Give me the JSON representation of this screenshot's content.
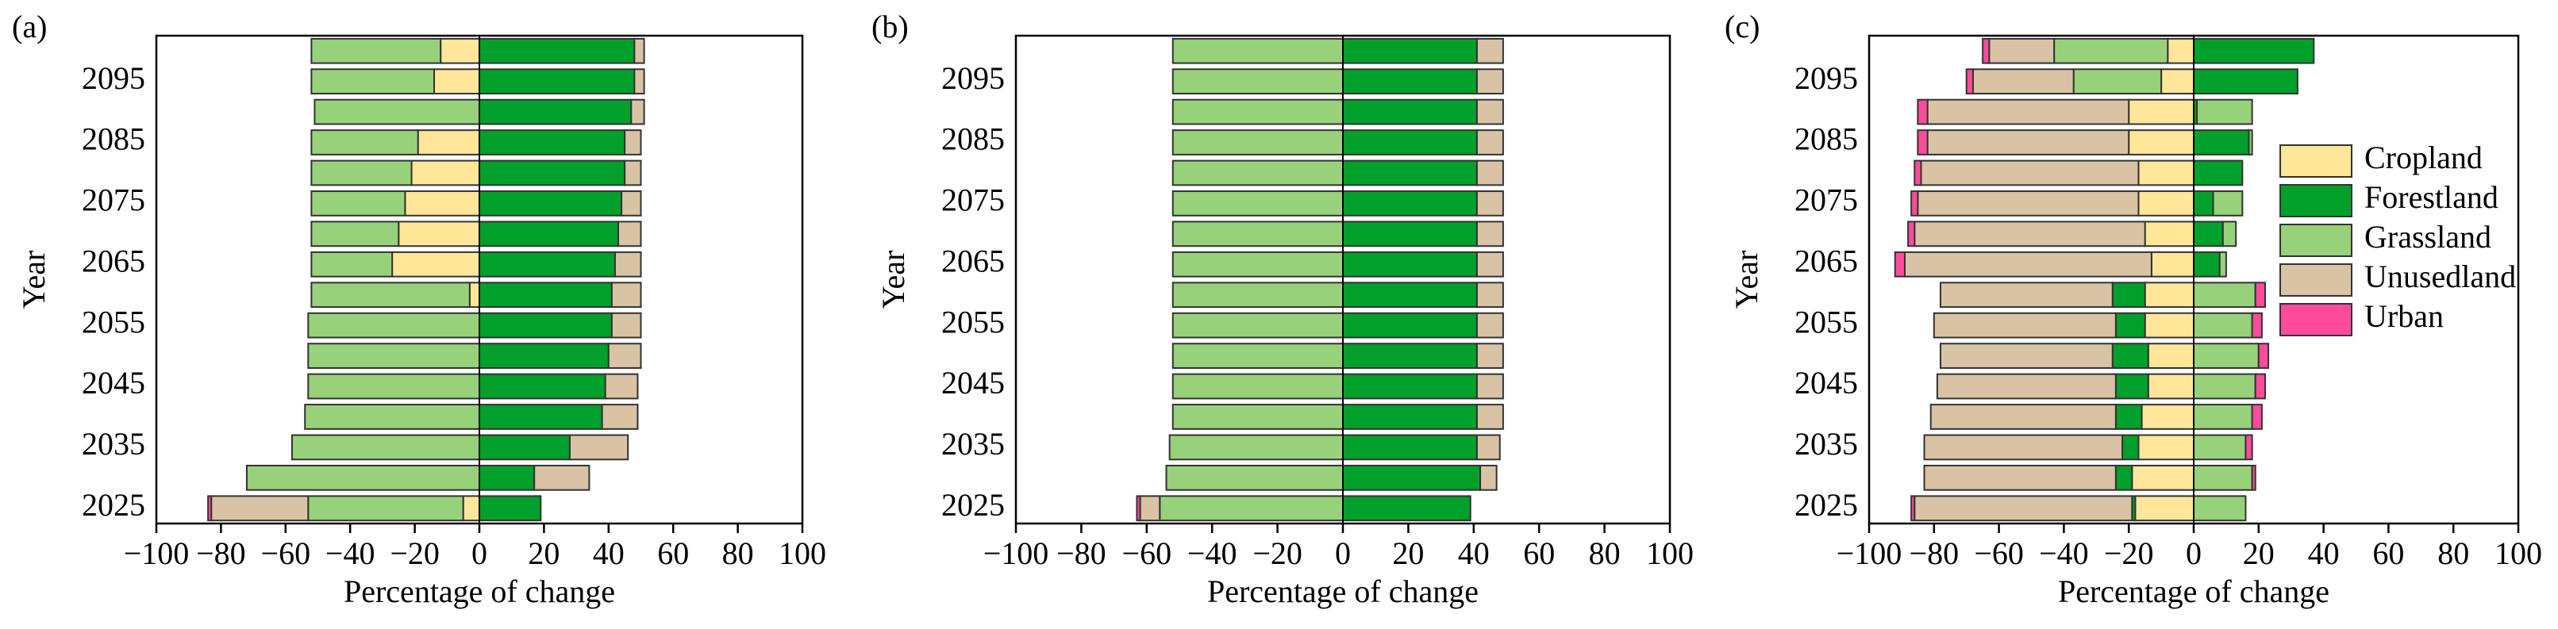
{
  "chart_data": [
    {
      "type": "bar",
      "orientation": "horizontal",
      "stacked": true,
      "label": "(a)",
      "xlabel": "Percentage of change",
      "ylabel": "Year",
      "categories": [
        "2025",
        null,
        "2035",
        null,
        "2045",
        null,
        "2055",
        null,
        "2065",
        null,
        "2075",
        null,
        "2085",
        null,
        "2095",
        null
      ],
      "xlim": [
        -100,
        100
      ],
      "xticks": [
        {
          "value": -100,
          "label": "−100"
        },
        {
          "value": -80,
          "label": "−80"
        },
        {
          "value": -60,
          "label": "−60"
        },
        {
          "value": -40,
          "label": "−40"
        },
        {
          "value": -20,
          "label": "−20"
        },
        0,
        20,
        40,
        60,
        80,
        100
      ],
      "series": [
        {
          "name": "Cropland",
          "color": "#ffe699",
          "values": [
            -5,
            0,
            0,
            0,
            0,
            0,
            0,
            -3,
            -27,
            -25,
            -23,
            -21,
            -19,
            0,
            -14,
            -12
          ]
        },
        {
          "name": "Forestland",
          "color": "#00a02a",
          "values": [
            19,
            17,
            28,
            38,
            39,
            40,
            41,
            41,
            42,
            43,
            44,
            45,
            45,
            47,
            48,
            48
          ]
        },
        {
          "name": "Grassland",
          "color": "#97d27a",
          "values": [
            -48,
            -72,
            -58,
            -54,
            -53,
            -53,
            -53,
            -49,
            -25,
            -27,
            -29,
            -31,
            -33,
            -51,
            -38,
            -40
          ]
        },
        {
          "name": "Unusedland",
          "color": "#d8c3a4",
          "values": [
            -30,
            17,
            18,
            11,
            10,
            10,
            9,
            9,
            8,
            7,
            6,
            5,
            5,
            4,
            3,
            3
          ]
        },
        {
          "name": "Urban",
          "color": "#ff4b9b",
          "values": [
            -1,
            0,
            0,
            0,
            0,
            0,
            0,
            0,
            0,
            0,
            0,
            0,
            0,
            0,
            0,
            0
          ]
        }
      ]
    },
    {
      "type": "bar",
      "orientation": "horizontal",
      "stacked": true,
      "label": "(b)",
      "xlabel": "Percentage of change",
      "ylabel": "Year",
      "categories": [
        "2025",
        null,
        "2035",
        null,
        "2045",
        null,
        "2055",
        null,
        "2065",
        null,
        "2075",
        null,
        "2085",
        null,
        "2095",
        null
      ],
      "xlim": [
        -100,
        100
      ],
      "xticks": [
        {
          "value": -100,
          "label": "−100"
        },
        {
          "value": -80,
          "label": "−80"
        },
        {
          "value": -60,
          "label": "−60"
        },
        {
          "value": -40,
          "label": "−40"
        },
        {
          "value": -20,
          "label": "−20"
        },
        0,
        20,
        40,
        60,
        80,
        100
      ],
      "series": [
        {
          "name": "Cropland",
          "color": "#ffe699",
          "values": [
            0,
            0,
            0,
            0,
            0,
            0,
            0,
            0,
            0,
            0,
            0,
            0,
            0,
            0,
            0,
            0
          ]
        },
        {
          "name": "Forestland",
          "color": "#00a02a",
          "values": [
            39,
            42,
            41,
            41,
            41,
            41,
            41,
            41,
            41,
            41,
            41,
            41,
            41,
            41,
            41,
            41
          ]
        },
        {
          "name": "Grassland",
          "color": "#97d27a",
          "values": [
            -56,
            -54,
            -53,
            -52,
            -52,
            -52,
            -52,
            -52,
            -52,
            -52,
            -52,
            -52,
            -52,
            -52,
            -52,
            -52
          ]
        },
        {
          "name": "Unusedland",
          "color": "#d8c3a4",
          "values": [
            -6,
            5,
            7,
            8,
            8,
            8,
            8,
            8,
            8,
            8,
            8,
            8,
            8,
            8,
            8,
            8
          ]
        },
        {
          "name": "Urban",
          "color": "#ff4b9b",
          "values": [
            -1,
            0,
            0,
            0,
            0,
            0,
            0,
            0,
            0,
            0,
            0,
            0,
            0,
            0,
            0,
            0
          ]
        }
      ]
    },
    {
      "type": "bar",
      "orientation": "horizontal",
      "stacked": true,
      "label": "(c)",
      "xlabel": "Percentage of change",
      "ylabel": "Year",
      "legend": "right",
      "categories": [
        "2025",
        null,
        "2035",
        null,
        "2045",
        null,
        "2055",
        null,
        "2065",
        null,
        "2075",
        null,
        "2085",
        null,
        "2095",
        null
      ],
      "xlim": [
        -100,
        100
      ],
      "xticks": [
        {
          "value": -100,
          "label": "−100"
        },
        {
          "value": -80,
          "label": "−80"
        },
        {
          "value": -60,
          "label": "−60"
        },
        {
          "value": -40,
          "label": "−40"
        },
        {
          "value": -20,
          "label": "−20"
        },
        0,
        20,
        40,
        60,
        80,
        100
      ],
      "series": [
        {
          "name": "Cropland",
          "color": "#ffe699",
          "values": [
            -18,
            -19,
            -17,
            -16,
            -14,
            -14,
            -15,
            -15,
            -13,
            -15,
            -17,
            -17,
            -20,
            -20,
            -10,
            -8
          ]
        },
        {
          "name": "Forestland",
          "color": "#00a02a",
          "values": [
            -1,
            -5,
            -5,
            -8,
            -10,
            -11,
            -9,
            -10,
            8,
            9,
            6,
            15,
            17,
            1,
            32,
            37
          ]
        },
        {
          "name": "Grassland",
          "color": "#97d27a",
          "values": [
            16,
            18,
            16,
            18,
            19,
            20,
            18,
            19,
            2,
            4,
            9,
            0,
            1,
            17,
            -27,
            -35
          ]
        },
        {
          "name": "Unusedland",
          "color": "#d8c3a4",
          "values": [
            -67,
            -59,
            -61,
            -57,
            -55,
            -53,
            -56,
            -53,
            -76,
            -71,
            -68,
            -67,
            -62,
            -62,
            -31,
            -20
          ]
        },
        {
          "name": "Urban",
          "color": "#ff4b9b",
          "values": [
            -1,
            1,
            2,
            3,
            3,
            3,
            3,
            3,
            -3,
            -2,
            -2,
            -2,
            -3,
            -3,
            -2,
            -2
          ]
        }
      ]
    }
  ]
}
